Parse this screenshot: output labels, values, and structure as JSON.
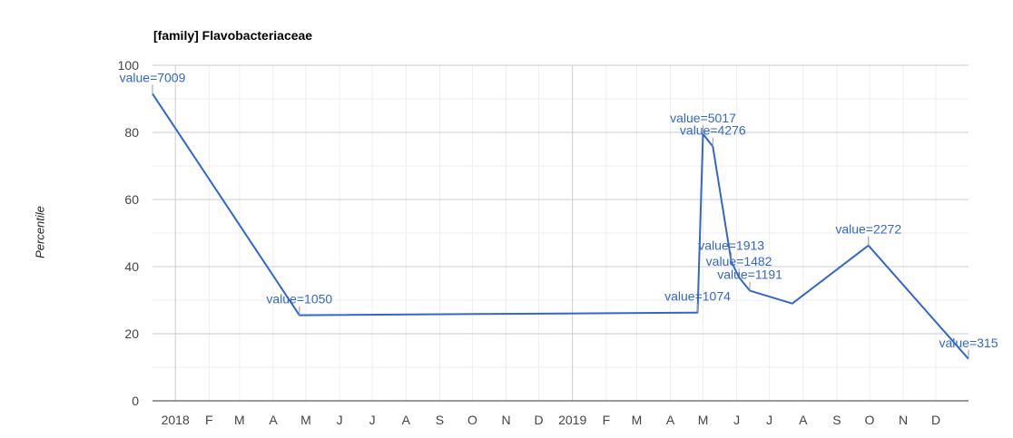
{
  "chart_data": {
    "type": "line",
    "title": "[family] Flavobacteriaceae",
    "xlabel": "",
    "ylabel": "Percentile",
    "ylim": [
      0,
      100
    ],
    "yticks": [
      0,
      20,
      40,
      60,
      80,
      100
    ],
    "xlim": [
      "2017-12-11",
      "2019-12-31"
    ],
    "x_tick_labels": [
      {
        "date": "2018-01-01",
        "label": "2018",
        "major": true
      },
      {
        "date": "2018-02-01",
        "label": "F"
      },
      {
        "date": "2018-03-01",
        "label": "M"
      },
      {
        "date": "2018-04-01",
        "label": "A"
      },
      {
        "date": "2018-05-01",
        "label": "M"
      },
      {
        "date": "2018-06-01",
        "label": "J"
      },
      {
        "date": "2018-07-01",
        "label": "J"
      },
      {
        "date": "2018-08-01",
        "label": "A"
      },
      {
        "date": "2018-09-01",
        "label": "S"
      },
      {
        "date": "2018-10-01",
        "label": "O"
      },
      {
        "date": "2018-11-01",
        "label": "N"
      },
      {
        "date": "2018-12-01",
        "label": "D"
      },
      {
        "date": "2019-01-01",
        "label": "2019",
        "major": true
      },
      {
        "date": "2019-02-01",
        "label": "F"
      },
      {
        "date": "2019-03-01",
        "label": "M"
      },
      {
        "date": "2019-04-01",
        "label": "A"
      },
      {
        "date": "2019-05-01",
        "label": "M"
      },
      {
        "date": "2019-06-01",
        "label": "J"
      },
      {
        "date": "2019-07-01",
        "label": "J"
      },
      {
        "date": "2019-08-01",
        "label": "A"
      },
      {
        "date": "2019-09-01",
        "label": "S"
      },
      {
        "date": "2019-10-01",
        "label": "O"
      },
      {
        "date": "2019-11-01",
        "label": "N"
      },
      {
        "date": "2019-12-01",
        "label": "D"
      }
    ],
    "grid": true,
    "line_color": "#3366cc",
    "series": [
      {
        "points": [
          {
            "x": "2017-12-11",
            "y": 91.5,
            "annotation": "value=7009"
          },
          {
            "x": "2018-04-25",
            "y": 25.5,
            "annotation": "value=1050"
          },
          {
            "x": "2019-04-26",
            "y": 26.3,
            "annotation": "value=1074"
          },
          {
            "x": "2019-05-01",
            "y": 79.5,
            "annotation": "value=5017"
          },
          {
            "x": "2019-05-10",
            "y": 75.8,
            "annotation": "value=4276"
          },
          {
            "x": "2019-05-27",
            "y": 41.5,
            "annotation": "value=1913"
          },
          {
            "x": "2019-06-03",
            "y": 36.8,
            "annotation": "value=1482"
          },
          {
            "x": "2019-06-13",
            "y": 32.8,
            "annotation": "value=1191"
          },
          {
            "x": "2019-07-22",
            "y": 29.0
          },
          {
            "x": "2019-09-30",
            "y": 46.3,
            "annotation": "value=2272"
          },
          {
            "x": "2019-12-31",
            "y": 12.5,
            "annotation": "value=315"
          }
        ]
      }
    ]
  }
}
